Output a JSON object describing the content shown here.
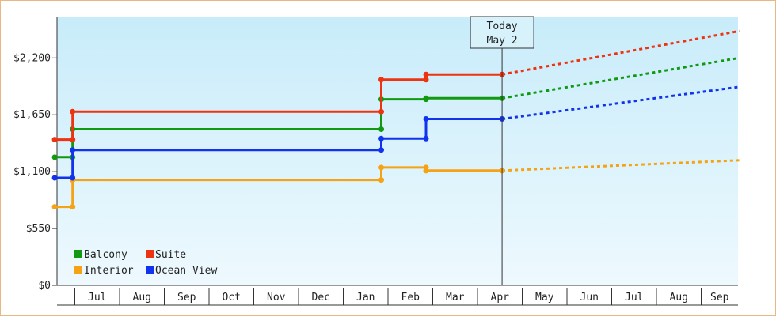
{
  "chart_data": {
    "type": "line",
    "step": true,
    "title": "",
    "xlabel": "",
    "ylabel": "",
    "ylim": [
      0,
      2600
    ],
    "y_ticks": [
      {
        "value": 0,
        "label": "$0"
      },
      {
        "value": 550,
        "label": "$550"
      },
      {
        "value": 1100,
        "label": "$1,100"
      },
      {
        "value": 1650,
        "label": "$1,650"
      },
      {
        "value": 2200,
        "label": "$2,200"
      }
    ],
    "x_months": [
      "Jul",
      "Aug",
      "Sep",
      "Oct",
      "Nov",
      "Dec",
      "Jan",
      "Feb",
      "Mar",
      "Apr",
      "May",
      "Jun",
      "Jul",
      "Aug",
      "Sep"
    ],
    "today_marker": {
      "line1": "Today",
      "line2": "May 2",
      "month_index": 9.55
    },
    "legend": {
      "placement": "bottom-left"
    },
    "series": [
      {
        "name": "Balcony",
        "color": "#119911",
        "points": [
          [
            -0.45,
            1240
          ],
          [
            -0.05,
            1240
          ],
          [
            -0.05,
            1510
          ],
          [
            6.85,
            1510
          ],
          [
            6.85,
            1800
          ],
          [
            7.85,
            1800
          ],
          [
            7.85,
            1810
          ],
          [
            9.55,
            1810
          ]
        ],
        "forecast": [
          [
            9.55,
            1810
          ],
          [
            14.85,
            2200
          ]
        ]
      },
      {
        "name": "Suite",
        "color": "#ee3311",
        "points": [
          [
            -0.45,
            1410
          ],
          [
            -0.05,
            1410
          ],
          [
            -0.05,
            1680
          ],
          [
            6.85,
            1680
          ],
          [
            6.85,
            1990
          ],
          [
            7.85,
            1990
          ],
          [
            7.85,
            2040
          ],
          [
            9.55,
            2040
          ]
        ],
        "forecast": [
          [
            9.55,
            2040
          ],
          [
            14.85,
            2460
          ]
        ]
      },
      {
        "name": "Interior",
        "color": "#f5a314",
        "points": [
          [
            -0.45,
            760
          ],
          [
            -0.05,
            760
          ],
          [
            -0.05,
            1020
          ],
          [
            6.85,
            1020
          ],
          [
            6.85,
            1140
          ],
          [
            7.85,
            1140
          ],
          [
            7.85,
            1110
          ],
          [
            9.55,
            1110
          ]
        ],
        "forecast": [
          [
            9.55,
            1110
          ],
          [
            14.85,
            1210
          ]
        ]
      },
      {
        "name": "Ocean View",
        "color": "#1133ee",
        "points": [
          [
            -0.45,
            1040
          ],
          [
            -0.05,
            1040
          ],
          [
            -0.05,
            1310
          ],
          [
            6.85,
            1310
          ],
          [
            6.85,
            1420
          ],
          [
            7.85,
            1420
          ],
          [
            7.85,
            1610
          ],
          [
            9.55,
            1610
          ]
        ],
        "forecast": [
          [
            9.55,
            1610
          ],
          [
            14.85,
            1920
          ]
        ]
      }
    ]
  }
}
